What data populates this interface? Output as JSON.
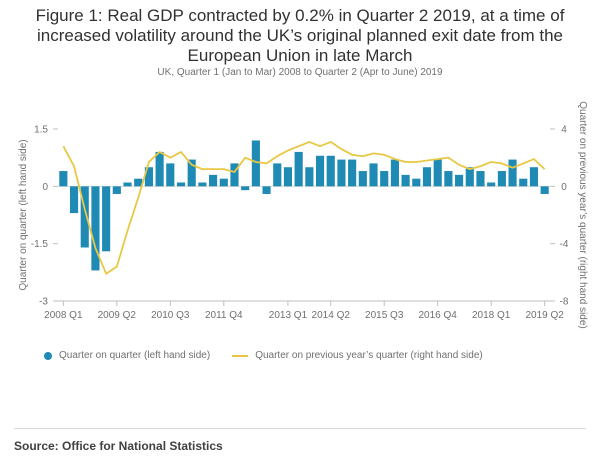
{
  "colors": {
    "bar": "#1f8bb4",
    "line": "#e8c843",
    "axis": "#bfbfbf",
    "text": "#707071"
  },
  "chart_data": {
    "type": "bar",
    "title": "Figure 1: Real GDP contracted by 0.2% in Quarter 2 2019, at a time of increased volatility around the UK’s original planned exit date from the European Union in late March",
    "subtitle": "UK, Quarter 1 (Jan to Mar) 2008 to Quarter 2 (Apr to June) 2019",
    "ylabel_left": "Quarter on quarter (left hand side)",
    "ylabel_right": "Quarter on previous year’s quarter (right hand side)",
    "ylim_left": [
      -3,
      1.5
    ],
    "ylim_right": [
      -8,
      4
    ],
    "yticks_left": [
      {
        "value": 1.5,
        "label": "1.5"
      },
      {
        "value": 0,
        "label": "0"
      },
      {
        "value": -1.5,
        "label": "-1.5"
      },
      {
        "value": -3,
        "label": "-3"
      }
    ],
    "yticks_right": [
      {
        "value": 4,
        "label": "4"
      },
      {
        "value": 0,
        "label": "0"
      },
      {
        "value": -4,
        "label": "-4"
      },
      {
        "value": -8,
        "label": "-8"
      }
    ],
    "x_tick_labels": [
      {
        "index": 0,
        "label": "2008 Q1"
      },
      {
        "index": 5,
        "label": "2009 Q2"
      },
      {
        "index": 10,
        "label": "2010 Q3"
      },
      {
        "index": 15,
        "label": "2011 Q4"
      },
      {
        "index": 21,
        "label": "2013 Q1"
      },
      {
        "index": 25,
        "label": "2014 Q2"
      },
      {
        "index": 30,
        "label": "2015 Q3"
      },
      {
        "index": 35,
        "label": "2016 Q4"
      },
      {
        "index": 40,
        "label": "2018 Q1"
      },
      {
        "index": 45,
        "label": "2019 Q2"
      }
    ],
    "legend": [
      "Quarter on quarter (left hand side)",
      "Quarter on previous year’s quarter (right hand side)"
    ],
    "series": [
      {
        "name": "Quarter on quarter (left hand side)",
        "type": "bar",
        "axis": "left",
        "values": [
          0.4,
          -0.7,
          -1.6,
          -2.2,
          -1.7,
          -0.2,
          0.1,
          0.2,
          0.5,
          0.9,
          0.6,
          0.1,
          0.7,
          0.1,
          0.3,
          0.2,
          0.6,
          -0.1,
          1.2,
          -0.2,
          0.6,
          0.5,
          0.9,
          0.5,
          0.8,
          0.8,
          0.7,
          0.7,
          0.4,
          0.6,
          0.4,
          0.7,
          0.3,
          0.2,
          0.5,
          0.7,
          0.4,
          0.3,
          0.5,
          0.4,
          0.1,
          0.4,
          0.7,
          0.2,
          0.5,
          -0.2
        ]
      },
      {
        "name": "Quarter on previous year’s quarter (right hand side)",
        "type": "line",
        "axis": "right",
        "values": [
          2.8,
          1.4,
          -1.6,
          -4.3,
          -6.1,
          -5.6,
          -3.1,
          -0.8,
          1.7,
          2.4,
          2.0,
          2.4,
          1.5,
          1.2,
          1.2,
          1.2,
          1.0,
          2.0,
          1.7,
          1.6,
          2.1,
          2.5,
          2.8,
          3.1,
          2.8,
          3.1,
          2.6,
          2.2,
          2.1,
          2.3,
          2.2,
          1.9,
          1.7,
          1.7,
          1.8,
          1.9,
          2.0,
          1.5,
          1.2,
          1.4,
          1.7,
          1.6,
          1.3,
          1.6,
          1.9,
          1.2
        ]
      }
    ]
  },
  "source": "Source: Office for National Statistics"
}
